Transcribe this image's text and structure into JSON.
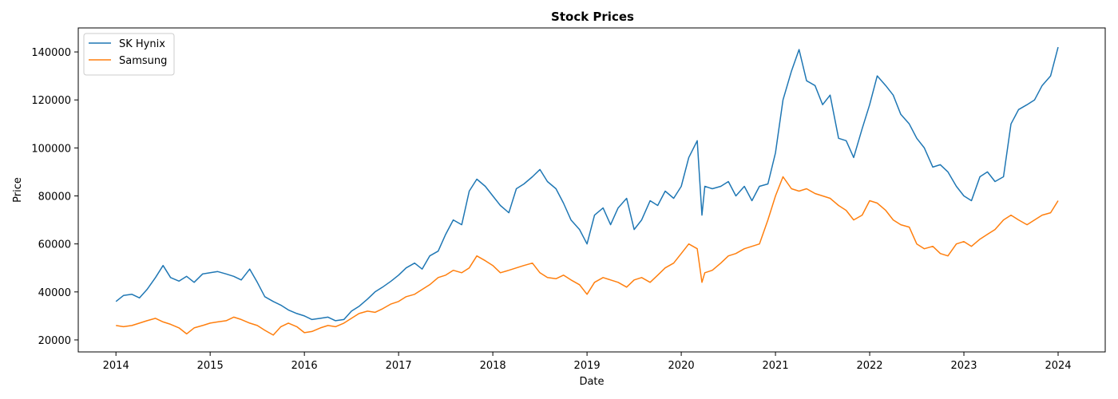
{
  "chart_data": {
    "type": "line",
    "title": "Stock Prices",
    "xlabel": "Date",
    "ylabel": "Price",
    "xlim": [
      2013.6,
      2024.5
    ],
    "ylim": [
      15000,
      150000
    ],
    "x_ticks": [
      {
        "value": 2014,
        "label": "2014"
      },
      {
        "value": 2015,
        "label": "2015"
      },
      {
        "value": 2016,
        "label": "2016"
      },
      {
        "value": 2017,
        "label": "2017"
      },
      {
        "value": 2018,
        "label": "2018"
      },
      {
        "value": 2019,
        "label": "2019"
      },
      {
        "value": 2020,
        "label": "2020"
      },
      {
        "value": 2021,
        "label": "2021"
      },
      {
        "value": 2022,
        "label": "2022"
      },
      {
        "value": 2023,
        "label": "2023"
      },
      {
        "value": 2024,
        "label": "2024"
      }
    ],
    "y_ticks": [
      {
        "value": 20000,
        "label": "20000"
      },
      {
        "value": 40000,
        "label": "40000"
      },
      {
        "value": 60000,
        "label": "60000"
      },
      {
        "value": 80000,
        "label": "80000"
      },
      {
        "value": 100000,
        "label": "100000"
      },
      {
        "value": 120000,
        "label": "120000"
      },
      {
        "value": 140000,
        "label": "140000"
      }
    ],
    "grid": false,
    "legend_position": "top-left",
    "series": [
      {
        "name": "SK Hynix",
        "color": "#1f77b4",
        "x": [
          2014.0,
          2014.08,
          2014.17,
          2014.25,
          2014.33,
          2014.42,
          2014.5,
          2014.58,
          2014.67,
          2014.75,
          2014.83,
          2014.92,
          2015.0,
          2015.08,
          2015.17,
          2015.25,
          2015.33,
          2015.42,
          2015.5,
          2015.58,
          2015.67,
          2015.75,
          2015.83,
          2015.92,
          2016.0,
          2016.08,
          2016.17,
          2016.25,
          2016.33,
          2016.42,
          2016.5,
          2016.58,
          2016.67,
          2016.75,
          2016.83,
          2016.92,
          2017.0,
          2017.08,
          2017.17,
          2017.25,
          2017.33,
          2017.42,
          2017.5,
          2017.58,
          2017.67,
          2017.75,
          2017.83,
          2017.92,
          2018.0,
          2018.08,
          2018.17,
          2018.25,
          2018.33,
          2018.42,
          2018.5,
          2018.58,
          2018.67,
          2018.75,
          2018.83,
          2018.92,
          2019.0,
          2019.08,
          2019.17,
          2019.25,
          2019.33,
          2019.42,
          2019.5,
          2019.58,
          2019.67,
          2019.75,
          2019.83,
          2019.92,
          2020.0,
          2020.08,
          2020.17,
          2020.22,
          2020.25,
          2020.33,
          2020.42,
          2020.5,
          2020.58,
          2020.67,
          2020.75,
          2020.83,
          2020.92,
          2021.0,
          2021.08,
          2021.17,
          2021.25,
          2021.33,
          2021.42,
          2021.5,
          2021.58,
          2021.67,
          2021.75,
          2021.83,
          2021.92,
          2022.0,
          2022.08,
          2022.17,
          2022.25,
          2022.33,
          2022.42,
          2022.5,
          2022.58,
          2022.67,
          2022.75,
          2022.83,
          2022.92,
          2023.0,
          2023.08,
          2023.17,
          2023.25,
          2023.33,
          2023.42,
          2023.5,
          2023.58,
          2023.67,
          2023.75,
          2023.83,
          2023.92,
          2024.0
        ],
        "y": [
          36000,
          38500,
          39000,
          37500,
          41000,
          46000,
          51000,
          46000,
          44500,
          46500,
          44000,
          47500,
          48000,
          48500,
          47500,
          46500,
          45000,
          49500,
          44000,
          38000,
          36000,
          34500,
          32500,
          31000,
          30000,
          28500,
          29000,
          29500,
          28000,
          28500,
          32000,
          34000,
          37000,
          40000,
          42000,
          44500,
          47000,
          50000,
          52000,
          49500,
          55000,
          57000,
          64000,
          70000,
          68000,
          82000,
          87000,
          84000,
          80000,
          76000,
          73000,
          83000,
          85000,
          88000,
          91000,
          86000,
          83000,
          77000,
          70000,
          66000,
          60000,
          72000,
          75000,
          68000,
          75000,
          79000,
          66000,
          70000,
          78000,
          76000,
          82000,
          79000,
          84000,
          96000,
          103000,
          72000,
          84000,
          83000,
          84000,
          86000,
          80000,
          84000,
          78000,
          84000,
          85000,
          98000,
          120000,
          132000,
          141000,
          128000,
          126000,
          118000,
          122000,
          104000,
          103000,
          96000,
          108000,
          118000,
          130000,
          126000,
          122000,
          114000,
          110000,
          104000,
          100000,
          92000,
          93000,
          90000,
          84000,
          80000,
          78000,
          88000,
          90000,
          86000,
          88000,
          110000,
          116000,
          118000,
          120000,
          126000,
          130000,
          142000
        ]
      },
      {
        "name": "Samsung",
        "color": "#ff7f0e",
        "x": [
          2014.0,
          2014.08,
          2014.17,
          2014.25,
          2014.33,
          2014.42,
          2014.5,
          2014.58,
          2014.67,
          2014.75,
          2014.83,
          2014.92,
          2015.0,
          2015.08,
          2015.17,
          2015.25,
          2015.33,
          2015.42,
          2015.5,
          2015.58,
          2015.67,
          2015.75,
          2015.83,
          2015.92,
          2016.0,
          2016.08,
          2016.17,
          2016.25,
          2016.33,
          2016.42,
          2016.5,
          2016.58,
          2016.67,
          2016.75,
          2016.83,
          2016.92,
          2017.0,
          2017.08,
          2017.17,
          2017.25,
          2017.33,
          2017.42,
          2017.5,
          2017.58,
          2017.67,
          2017.75,
          2017.83,
          2017.92,
          2018.0,
          2018.08,
          2018.17,
          2018.25,
          2018.33,
          2018.42,
          2018.5,
          2018.58,
          2018.67,
          2018.75,
          2018.83,
          2018.92,
          2019.0,
          2019.08,
          2019.17,
          2019.25,
          2019.33,
          2019.42,
          2019.5,
          2019.58,
          2019.67,
          2019.75,
          2019.83,
          2019.92,
          2020.0,
          2020.08,
          2020.17,
          2020.22,
          2020.25,
          2020.33,
          2020.42,
          2020.5,
          2020.58,
          2020.67,
          2020.75,
          2020.83,
          2020.92,
          2021.0,
          2021.08,
          2021.17,
          2021.25,
          2021.33,
          2021.42,
          2021.5,
          2021.58,
          2021.67,
          2021.75,
          2021.83,
          2021.92,
          2022.0,
          2022.08,
          2022.17,
          2022.25,
          2022.33,
          2022.42,
          2022.5,
          2022.58,
          2022.67,
          2022.75,
          2022.83,
          2022.92,
          2023.0,
          2023.08,
          2023.17,
          2023.25,
          2023.33,
          2023.42,
          2023.5,
          2023.58,
          2023.67,
          2023.75,
          2023.83,
          2023.92,
          2024.0
        ],
        "y": [
          26000,
          25500,
          26000,
          27000,
          28000,
          29000,
          27500,
          26500,
          25000,
          22500,
          25000,
          26000,
          27000,
          27500,
          28000,
          29500,
          28500,
          27000,
          26000,
          24000,
          22000,
          25500,
          27000,
          25500,
          23000,
          23500,
          25000,
          26000,
          25500,
          27000,
          29000,
          31000,
          32000,
          31500,
          33000,
          35000,
          36000,
          38000,
          39000,
          41000,
          43000,
          46000,
          47000,
          49000,
          48000,
          50000,
          55000,
          53000,
          51000,
          48000,
          49000,
          50000,
          51000,
          52000,
          48000,
          46000,
          45500,
          47000,
          45000,
          43000,
          39000,
          44000,
          46000,
          45000,
          44000,
          42000,
          45000,
          46000,
          44000,
          47000,
          50000,
          52000,
          56000,
          60000,
          58000,
          44000,
          48000,
          49000,
          52000,
          55000,
          56000,
          58000,
          59000,
          60000,
          70000,
          80000,
          88000,
          83000,
          82000,
          83000,
          81000,
          80000,
          79000,
          76000,
          74000,
          70000,
          72000,
          78000,
          77000,
          74000,
          70000,
          68000,
          67000,
          60000,
          58000,
          59000,
          56000,
          55000,
          60000,
          61000,
          59000,
          62000,
          64000,
          66000,
          70000,
          72000,
          70000,
          68000,
          70000,
          72000,
          73000,
          78000
        ]
      }
    ]
  }
}
